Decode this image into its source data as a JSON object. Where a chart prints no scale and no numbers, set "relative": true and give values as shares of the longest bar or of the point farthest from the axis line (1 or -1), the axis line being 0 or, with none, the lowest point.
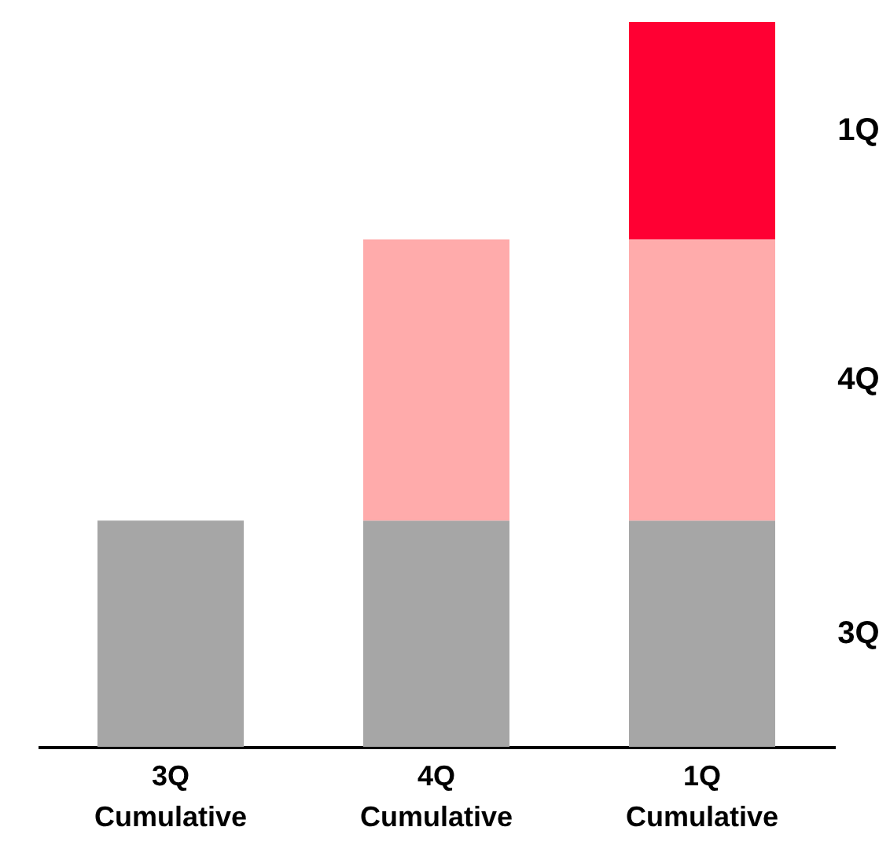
{
  "chart_data": {
    "type": "bar",
    "stacked": true,
    "relative": true,
    "categories": [
      "3Q Cumulative",
      "4Q Cumulative",
      "1Q Cumulative"
    ],
    "series": [
      {
        "name": "3Q",
        "color": "#a6a6a6",
        "values": [
          0.312,
          0.312,
          0.312
        ]
      },
      {
        "name": "4Q",
        "color": "#ffabab",
        "values": [
          null,
          0.388,
          0.388
        ]
      },
      {
        "name": "1Q",
        "color": "#ff0033",
        "values": [
          null,
          null,
          0.3
        ]
      }
    ]
  }
}
